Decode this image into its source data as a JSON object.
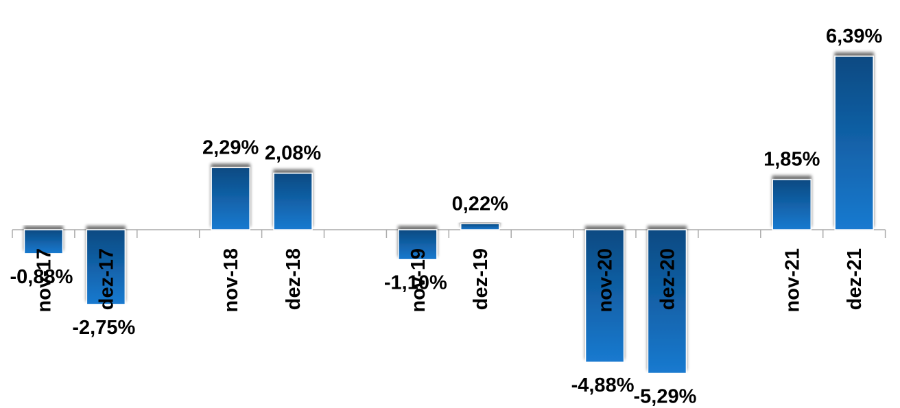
{
  "chart_data": {
    "type": "bar",
    "title": "",
    "xlabel": "",
    "ylabel": "",
    "categories": [
      "nov-17",
      "dez-17",
      "",
      "nov-18",
      "dez-18",
      "",
      "nov-19",
      "dez-19",
      "",
      "nov-20",
      "dez-20",
      "",
      "nov-21",
      "dez-21"
    ],
    "values": [
      -0.88,
      -2.75,
      null,
      2.29,
      2.08,
      null,
      -1.1,
      0.22,
      null,
      -4.88,
      -5.29,
      null,
      1.85,
      6.39
    ],
    "value_labels": [
      "-0,88%",
      "-2,75%",
      "",
      "2,29%",
      "2,08%",
      "",
      "-1,10%",
      "0,22%",
      "",
      "-4,88%",
      "-5,29%",
      "",
      "1,85%",
      "6,39%"
    ],
    "ylim": [
      -5.29,
      6.39
    ],
    "grid": false,
    "legend": "none",
    "bar_color_top": "#0a4a82",
    "bar_color_bottom": "#1a7ad0",
    "axis_color": "#aaaaaa"
  }
}
